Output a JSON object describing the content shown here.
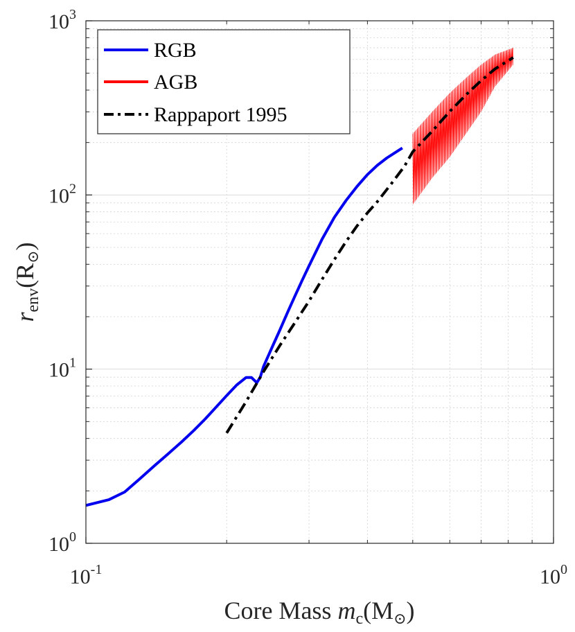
{
  "chart_data": {
    "type": "line",
    "title": "",
    "x_scale": "log",
    "y_scale": "log",
    "xlim": [
      0.1,
      1
    ],
    "ylim": [
      1,
      1000
    ],
    "grid": true,
    "legend_position": "top-left",
    "x_ticks": [
      {
        "value": 0.1,
        "base": "10",
        "exp": "-1"
      },
      {
        "value": 1,
        "base": "10",
        "exp": "0"
      }
    ],
    "y_ticks": [
      {
        "value": 1,
        "base": "10",
        "exp": "0"
      },
      {
        "value": 10,
        "base": "10",
        "exp": "1"
      },
      {
        "value": 100,
        "base": "10",
        "exp": "2"
      },
      {
        "value": 1000,
        "base": "10",
        "exp": "3"
      }
    ],
    "xlabel": {
      "main": "Core Mass ",
      "var": "m",
      "sub": "c",
      "unit_open": "(M",
      "unit_sub": "⊙",
      "unit_close": ")"
    },
    "ylabel": {
      "var": "r",
      "sub": "env",
      "unit_open": "(R",
      "unit_sub": "⊙",
      "unit_close": ")"
    },
    "series": [
      {
        "name": "RGB",
        "color": "#0000ee",
        "style": "solid",
        "x": [
          0.1,
          0.112,
          0.121,
          0.13,
          0.14,
          0.15,
          0.16,
          0.17,
          0.18,
          0.19,
          0.2,
          0.21,
          0.22,
          0.226,
          0.23,
          0.232,
          0.236,
          0.24,
          0.25,
          0.26,
          0.27,
          0.28,
          0.29,
          0.3,
          0.32,
          0.34,
          0.36,
          0.38,
          0.4,
          0.42,
          0.44,
          0.46,
          0.475
        ],
        "y": [
          1.65,
          1.78,
          1.97,
          2.33,
          2.78,
          3.27,
          3.81,
          4.44,
          5.18,
          6.07,
          7.05,
          8.1,
          8.95,
          8.95,
          8.55,
          8.35,
          9.0,
          10.4,
          13.3,
          16.8,
          21.2,
          26.3,
          32.3,
          39.2,
          55.8,
          74.5,
          93.0,
          112,
          131,
          148,
          163,
          176,
          186
        ]
      },
      {
        "name": "AGB",
        "color": "#ff0000",
        "style": "oscillating",
        "x": [
          0.5,
          0.55,
          0.6,
          0.65,
          0.7,
          0.75,
          0.82
        ],
        "y_upper": [
          225,
          300,
          385,
          470,
          560,
          640,
          700
        ],
        "y_lower": [
          88,
          125,
          165,
          225,
          300,
          420,
          560
        ]
      },
      {
        "name": "Rappaport 1995",
        "color": "#000000",
        "style": "dashdot",
        "x": [
          0.2,
          0.22,
          0.24,
          0.26,
          0.28,
          0.3,
          0.32,
          0.34,
          0.36,
          0.38,
          0.4,
          0.42,
          0.45,
          0.48,
          0.5,
          0.55,
          0.6,
          0.65,
          0.7,
          0.75,
          0.82
        ],
        "y": [
          4.3,
          6.5,
          9.7,
          13.7,
          18.5,
          24.6,
          32.8,
          42.6,
          54.0,
          66.4,
          79.0,
          91.5,
          116,
          146,
          177,
          232,
          302,
          376,
          453,
          530,
          615
        ]
      }
    ]
  }
}
